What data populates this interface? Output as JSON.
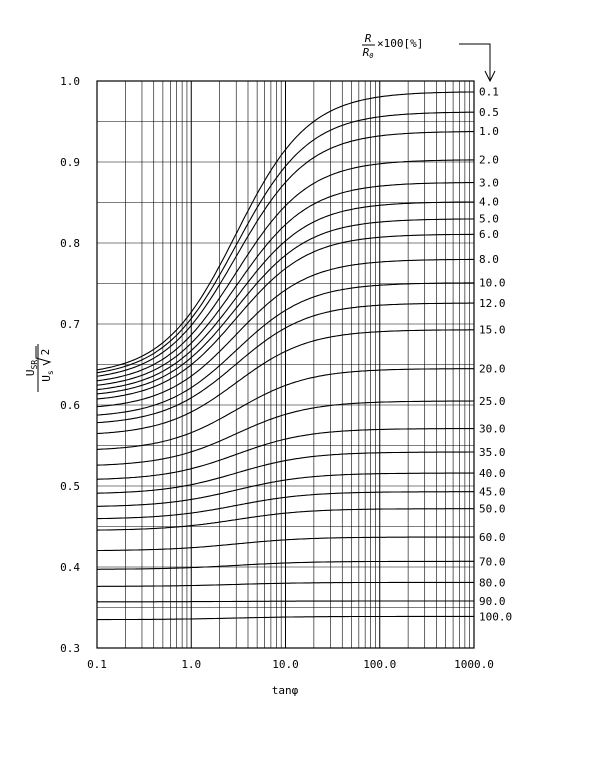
{
  "chart_data": {
    "type": "line",
    "xscale": "log",
    "xlim": [
      0.1,
      1000.0
    ],
    "ylim": [
      0.3,
      1.0
    ],
    "grid": true,
    "xlabel": "tanφ",
    "ylabel": {
      "numerator": "U",
      "numerator_sub": "SR",
      "denominator": "U",
      "denominator_sub": "s",
      "radical": "2"
    },
    "curve_label_header": {
      "num": "R",
      "den": "R",
      "den_sub": "0",
      "suffix": "×100[%]"
    },
    "x_ticks": [
      "0.1",
      "1.0",
      "10.0",
      "100.0",
      "1000.0"
    ],
    "y_ticks": [
      "0.3",
      "0.4",
      "0.5",
      "0.6",
      "0.7",
      "0.8",
      "0.9",
      "1.0"
    ],
    "series": [
      {
        "label": "0.1",
        "y_low": 0.636,
        "y_high": 0.987
      },
      {
        "label": "0.5",
        "y_low": 0.633,
        "y_high": 0.962
      },
      {
        "label": "1.0",
        "y_low": 0.629,
        "y_high": 0.938
      },
      {
        "label": "2.0",
        "y_low": 0.624,
        "y_high": 0.903
      },
      {
        "label": "3.0",
        "y_low": 0.619,
        "y_high": 0.875
      },
      {
        "label": "4.0",
        "y_low": 0.614,
        "y_high": 0.851
      },
      {
        "label": "5.0",
        "y_low": 0.609,
        "y_high": 0.83
      },
      {
        "label": "6.0",
        "y_low": 0.603,
        "y_high": 0.811
      },
      {
        "label": "8.0",
        "y_low": 0.594,
        "y_high": 0.78
      },
      {
        "label": "10.0",
        "y_low": 0.584,
        "y_high": 0.751
      },
      {
        "label": "12.0",
        "y_low": 0.575,
        "y_high": 0.726
      },
      {
        "label": "15.0",
        "y_low": 0.562,
        "y_high": 0.693
      },
      {
        "label": "20.0",
        "y_low": 0.543,
        "y_high": 0.645
      },
      {
        "label": "25.0",
        "y_low": 0.524,
        "y_high": 0.605
      },
      {
        "label": "30.0",
        "y_low": 0.507,
        "y_high": 0.571
      },
      {
        "label": "35.0",
        "y_low": 0.49,
        "y_high": 0.542
      },
      {
        "label": "40.0",
        "y_low": 0.474,
        "y_high": 0.516
      },
      {
        "label": "45.0",
        "y_low": 0.459,
        "y_high": 0.493
      },
      {
        "label": "50.0",
        "y_low": 0.445,
        "y_high": 0.472
      },
      {
        "label": "60.0",
        "y_low": 0.42,
        "y_high": 0.437
      },
      {
        "label": "70.0",
        "y_low": 0.397,
        "y_high": 0.407
      },
      {
        "label": "80.0",
        "y_low": 0.376,
        "y_high": 0.381
      },
      {
        "label": "90.0",
        "y_low": 0.357,
        "y_high": 0.358
      },
      {
        "label": "100.0",
        "y_low": 0.335,
        "y_high": 0.339
      }
    ]
  }
}
